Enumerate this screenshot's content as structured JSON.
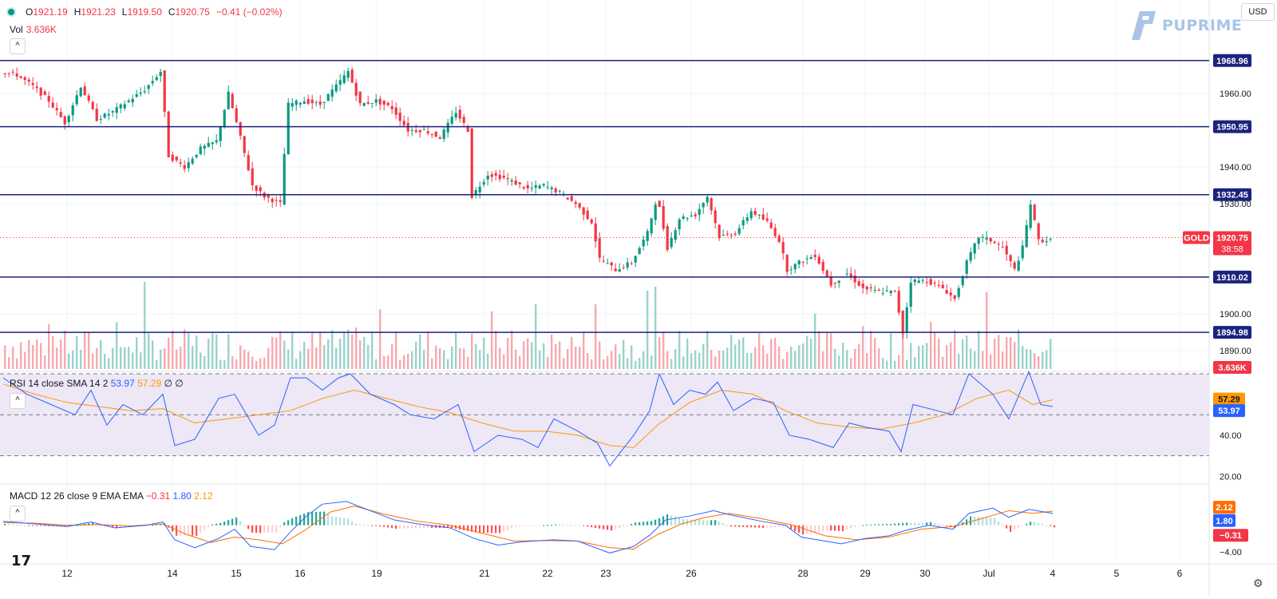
{
  "header": {
    "ohlc": [
      {
        "k": "O",
        "v": "1921.19"
      },
      {
        "k": "H",
        "v": "1921.23"
      },
      {
        "k": "L",
        "v": "1919.50"
      },
      {
        "k": "C",
        "v": "1920.75"
      },
      {
        "k": "",
        "v": "−0.41 (−0.02%)"
      }
    ],
    "vol_label": "Vol",
    "vol_value": "3.636K",
    "collapse_symbol": "^"
  },
  "brand": {
    "name": "PUPRIME"
  },
  "currency": "USD",
  "chart_data": {
    "type": "candlestick",
    "symbol": "GOLD",
    "price": {
      "ylim": [
        1885,
        1975
      ],
      "ticks": [
        1890,
        1900,
        1930,
        1940,
        1960
      ],
      "tick_labels": [
        "1890.00",
        "1900.00",
        "1930.00",
        "1940.00",
        "1960.00"
      ],
      "horizontal_levels": [
        "1968.96",
        "1950.95",
        "1932.45",
        "1910.02",
        "1894.98"
      ],
      "last_price": "1920.75",
      "last_label": "GOLD",
      "countdown": "38:58",
      "volume_badge": "3.636K",
      "close_path": [
        [
          0,
          1966
        ],
        [
          20,
          1965
        ],
        [
          40,
          1962
        ],
        [
          60,
          1958
        ],
        [
          80,
          1952
        ],
        [
          100,
          1962
        ],
        [
          120,
          1953
        ],
        [
          140,
          1955
        ],
        [
          160,
          1958
        ],
        [
          180,
          1961
        ],
        [
          200,
          1966
        ],
        [
          210,
          1943
        ],
        [
          230,
          1940
        ],
        [
          250,
          1945
        ],
        [
          270,
          1947
        ],
        [
          285,
          1960
        ],
        [
          300,
          1948
        ],
        [
          315,
          1935
        ],
        [
          330,
          1932
        ],
        [
          350,
          1930
        ],
        [
          360,
          1957
        ],
        [
          380,
          1958
        ],
        [
          400,
          1957
        ],
        [
          420,
          1962
        ],
        [
          435,
          1966
        ],
        [
          450,
          1957
        ],
        [
          470,
          1958
        ],
        [
          490,
          1956
        ],
        [
          510,
          1950
        ],
        [
          530,
          1950
        ],
        [
          550,
          1948
        ],
        [
          570,
          1955
        ],
        [
          585,
          1950
        ],
        [
          590,
          1932
        ],
        [
          610,
          1938
        ],
        [
          630,
          1937
        ],
        [
          660,
          1934
        ],
        [
          680,
          1935
        ],
        [
          700,
          1933
        ],
        [
          720,
          1930
        ],
        [
          740,
          1925
        ],
        [
          750,
          1915
        ],
        [
          770,
          1912
        ],
        [
          790,
          1914
        ],
        [
          810,
          1922
        ],
        [
          822,
          1932
        ],
        [
          835,
          1918
        ],
        [
          850,
          1926
        ],
        [
          870,
          1927
        ],
        [
          885,
          1932
        ],
        [
          900,
          1921
        ],
        [
          920,
          1922
        ],
        [
          940,
          1928
        ],
        [
          960,
          1925
        ],
        [
          975,
          1920
        ],
        [
          985,
          1912
        ],
        [
          1000,
          1914
        ],
        [
          1020,
          1916
        ],
        [
          1040,
          1908
        ],
        [
          1060,
          1911
        ],
        [
          1080,
          1907
        ],
        [
          1100,
          1906
        ],
        [
          1120,
          1906
        ],
        [
          1130,
          1895
        ],
        [
          1140,
          1909
        ],
        [
          1160,
          1909
        ],
        [
          1180,
          1907
        ],
        [
          1195,
          1904
        ],
        [
          1210,
          1914
        ],
        [
          1225,
          1921
        ],
        [
          1240,
          1920
        ],
        [
          1255,
          1918
        ],
        [
          1270,
          1912
        ],
        [
          1280,
          1918
        ],
        [
          1290,
          1930
        ],
        [
          1300,
          1920
        ],
        [
          1315,
          1920
        ]
      ]
    },
    "rsi": {
      "label": "RSI 14 close SMA 14 2",
      "values_display": [
        "53.97",
        "57.29",
        "∅",
        "∅"
      ],
      "ylim": [
        17,
        70
      ],
      "ticks": [
        20,
        40
      ],
      "tick_labels": [
        "20.00",
        "40.00"
      ],
      "bands": [
        30,
        50,
        70
      ],
      "rsi_badge": "53.97",
      "sma_badge": "57.29",
      "rsi_path": [
        [
          0,
          68
        ],
        [
          30,
          60
        ],
        [
          60,
          55
        ],
        [
          90,
          50
        ],
        [
          110,
          62
        ],
        [
          130,
          45
        ],
        [
          150,
          55
        ],
        [
          175,
          50
        ],
        [
          200,
          60
        ],
        [
          215,
          35
        ],
        [
          240,
          38
        ],
        [
          270,
          58
        ],
        [
          290,
          60
        ],
        [
          320,
          40
        ],
        [
          340,
          45
        ],
        [
          360,
          68
        ],
        [
          380,
          68
        ],
        [
          400,
          62
        ],
        [
          420,
          68
        ],
        [
          435,
          70
        ],
        [
          460,
          60
        ],
        [
          490,
          55
        ],
        [
          510,
          50
        ],
        [
          540,
          48
        ],
        [
          570,
          55
        ],
        [
          590,
          32
        ],
        [
          620,
          40
        ],
        [
          650,
          38
        ],
        [
          670,
          34
        ],
        [
          690,
          48
        ],
        [
          720,
          42
        ],
        [
          745,
          36
        ],
        [
          760,
          25
        ],
        [
          790,
          40
        ],
        [
          810,
          52
        ],
        [
          822,
          70
        ],
        [
          840,
          55
        ],
        [
          860,
          62
        ],
        [
          880,
          60
        ],
        [
          895,
          66
        ],
        [
          915,
          52
        ],
        [
          940,
          58
        ],
        [
          965,
          56
        ],
        [
          985,
          40
        ],
        [
          1010,
          38
        ],
        [
          1040,
          34
        ],
        [
          1060,
          46
        ],
        [
          1080,
          44
        ],
        [
          1110,
          42
        ],
        [
          1125,
          32
        ],
        [
          1140,
          55
        ],
        [
          1170,
          52
        ],
        [
          1190,
          50
        ],
        [
          1210,
          70
        ],
        [
          1240,
          60
        ],
        [
          1260,
          48
        ],
        [
          1285,
          71
        ],
        [
          1300,
          55
        ],
        [
          1315,
          53.97
        ]
      ],
      "sma_path": [
        [
          0,
          65
        ],
        [
          40,
          60
        ],
        [
          80,
          56
        ],
        [
          120,
          54
        ],
        [
          160,
          52
        ],
        [
          200,
          53
        ],
        [
          240,
          46
        ],
        [
          280,
          48
        ],
        [
          320,
          50
        ],
        [
          360,
          52
        ],
        [
          400,
          58
        ],
        [
          440,
          62
        ],
        [
          480,
          58
        ],
        [
          520,
          54
        ],
        [
          560,
          51
        ],
        [
          600,
          46
        ],
        [
          640,
          42
        ],
        [
          680,
          42
        ],
        [
          720,
          40
        ],
        [
          760,
          35
        ],
        [
          790,
          34
        ],
        [
          820,
          45
        ],
        [
          860,
          56
        ],
        [
          900,
          62
        ],
        [
          940,
          60
        ],
        [
          980,
          52
        ],
        [
          1020,
          46
        ],
        [
          1060,
          44
        ],
        [
          1100,
          43
        ],
        [
          1140,
          46
        ],
        [
          1180,
          50
        ],
        [
          1220,
          58
        ],
        [
          1260,
          62
        ],
        [
          1290,
          55
        ],
        [
          1315,
          57.29
        ]
      ]
    },
    "macd": {
      "label": "MACD 12 26 close 9 EMA EMA",
      "values_display": [
        "−0.31",
        "1.80",
        "2.12"
      ],
      "ylim": [
        -5.6,
        6.0
      ],
      "ticks": [
        -4
      ],
      "tick_labels": [
        "−4.00"
      ],
      "macd_badge": "1.80",
      "signal_badge": "2.12",
      "hist_badge": "−0.31",
      "macd_path": [
        [
          0,
          0.6
        ],
        [
          40,
          0.2
        ],
        [
          80,
          -0.2
        ],
        [
          110,
          0.5
        ],
        [
          140,
          -0.4
        ],
        [
          180,
          0.0
        ],
        [
          200,
          0.5
        ],
        [
          215,
          -2.2
        ],
        [
          240,
          -3.4
        ],
        [
          270,
          -2.0
        ],
        [
          290,
          -0.6
        ],
        [
          310,
          -3.2
        ],
        [
          340,
          -3.7
        ],
        [
          360,
          -1.0
        ],
        [
          380,
          1.4
        ],
        [
          400,
          3.2
        ],
        [
          430,
          3.6
        ],
        [
          460,
          2.2
        ],
        [
          490,
          0.8
        ],
        [
          520,
          0.2
        ],
        [
          560,
          -0.4
        ],
        [
          590,
          -2.0
        ],
        [
          620,
          -3.0
        ],
        [
          650,
          -2.5
        ],
        [
          690,
          -2.2
        ],
        [
          720,
          -2.4
        ],
        [
          760,
          -4.2
        ],
        [
          790,
          -3.2
        ],
        [
          810,
          -1.5
        ],
        [
          830,
          0.8
        ],
        [
          860,
          1.4
        ],
        [
          890,
          2.2
        ],
        [
          910,
          1.6
        ],
        [
          950,
          0.6
        ],
        [
          980,
          0.0
        ],
        [
          1000,
          -1.8
        ],
        [
          1020,
          -2.2
        ],
        [
          1050,
          -2.8
        ],
        [
          1080,
          -2.0
        ],
        [
          1110,
          -1.6
        ],
        [
          1130,
          -0.8
        ],
        [
          1160,
          0.0
        ],
        [
          1190,
          -0.6
        ],
        [
          1210,
          1.8
        ],
        [
          1240,
          2.6
        ],
        [
          1260,
          1.2
        ],
        [
          1285,
          2.4
        ],
        [
          1315,
          1.8
        ]
      ],
      "signal_path": [
        [
          0,
          0.4
        ],
        [
          40,
          0.3
        ],
        [
          80,
          0.0
        ],
        [
          120,
          0.1
        ],
        [
          160,
          -0.1
        ],
        [
          200,
          0.2
        ],
        [
          230,
          -1.4
        ],
        [
          260,
          -2.6
        ],
        [
          290,
          -1.8
        ],
        [
          320,
          -2.2
        ],
        [
          350,
          -2.8
        ],
        [
          380,
          -0.6
        ],
        [
          410,
          2.0
        ],
        [
          440,
          2.9
        ],
        [
          480,
          1.6
        ],
        [
          520,
          0.6
        ],
        [
          560,
          0.0
        ],
        [
          600,
          -1.2
        ],
        [
          640,
          -2.4
        ],
        [
          680,
          -2.3
        ],
        [
          720,
          -2.4
        ],
        [
          760,
          -3.4
        ],
        [
          790,
          -3.6
        ],
        [
          820,
          -1.4
        ],
        [
          850,
          0.2
        ],
        [
          880,
          1.2
        ],
        [
          910,
          1.8
        ],
        [
          950,
          1.0
        ],
        [
          990,
          0.0
        ],
        [
          1030,
          -1.6
        ],
        [
          1070,
          -2.2
        ],
        [
          1110,
          -1.8
        ],
        [
          1150,
          -0.6
        ],
        [
          1190,
          -0.2
        ],
        [
          1220,
          0.8
        ],
        [
          1260,
          2.2
        ],
        [
          1290,
          1.8
        ],
        [
          1315,
          2.12
        ]
      ]
    },
    "x_ticks": [
      {
        "x": 80,
        "label": "12"
      },
      {
        "x": 212,
        "label": "14"
      },
      {
        "x": 292,
        "label": "15"
      },
      {
        "x": 372,
        "label": "16"
      },
      {
        "x": 468,
        "label": "19"
      },
      {
        "x": 603,
        "label": "21"
      },
      {
        "x": 682,
        "label": "22"
      },
      {
        "x": 755,
        "label": "23"
      },
      {
        "x": 862,
        "label": "26"
      },
      {
        "x": 1002,
        "label": "28"
      },
      {
        "x": 1080,
        "label": "29"
      },
      {
        "x": 1155,
        "label": "30"
      },
      {
        "x": 1235,
        "label": "Jul"
      },
      {
        "x": 1315,
        "label": "4"
      },
      {
        "x": 1395,
        "label": "5"
      },
      {
        "x": 1474,
        "label": "6"
      }
    ],
    "colors": {
      "up": "#089981",
      "down": "#f23645",
      "level_line": "#1a237e",
      "level_badge": "#1a237e",
      "rsi": "#2962ff",
      "sma": "#ff9800",
      "rsi_band": "#ede7f6",
      "macd": "#2962ff",
      "signal": "#ff6d00",
      "last_price": "#f23645"
    }
  }
}
